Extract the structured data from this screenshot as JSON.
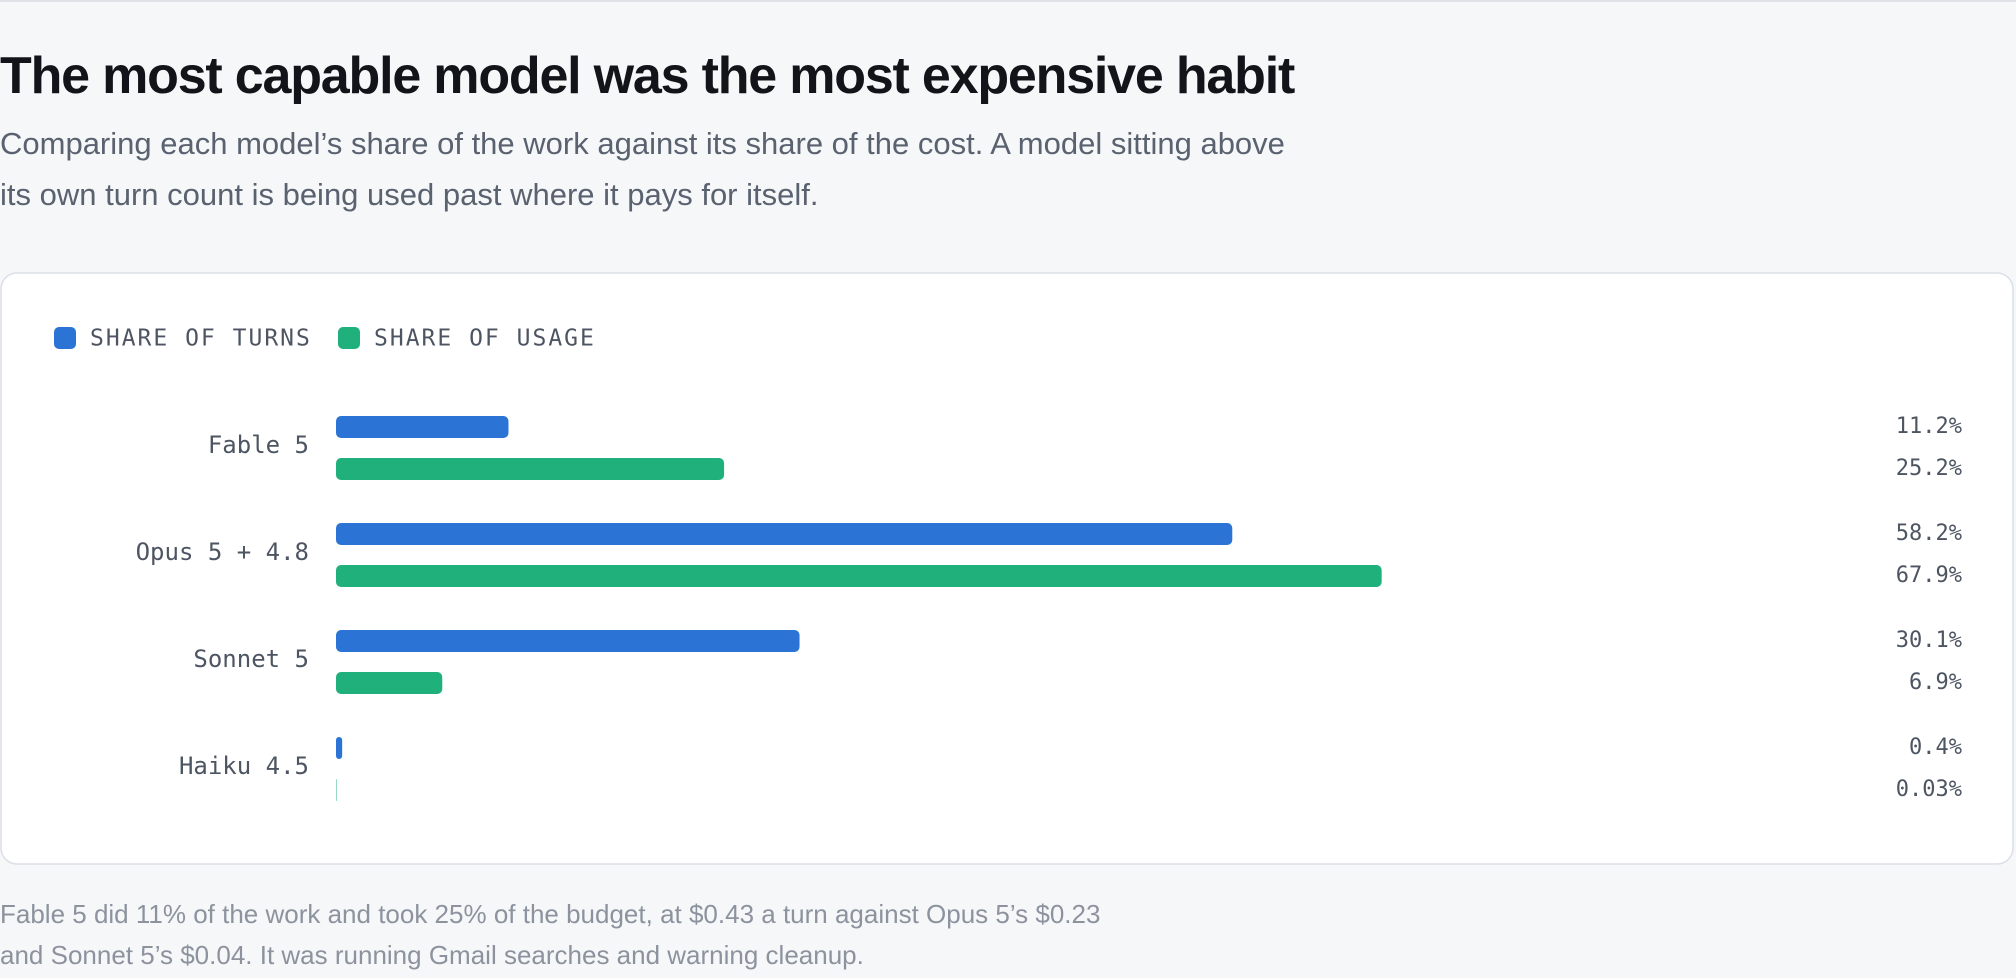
{
  "header": {
    "title": "The most capable model was the most expensive habit",
    "subtitle": "Comparing each model’s share of the work against its share of the cost. A model sitting above its own turn count is being used past where it pays for itself."
  },
  "chart_data": {
    "type": "bar",
    "orientation": "horizontal",
    "categories": [
      "Fable 5",
      "Opus 5 + 4.8",
      "Sonnet 5",
      "Haiku 4.5"
    ],
    "series": [
      {
        "name": "SHARE OF TURNS",
        "color": "#2b74d6",
        "values": [
          11.2,
          58.2,
          30.1,
          0.4
        ],
        "value_labels": [
          "11.2%",
          "58.2%",
          "30.1%",
          "0.4%"
        ]
      },
      {
        "name": "SHARE OF USAGE",
        "color": "#1fb07b",
        "values": [
          25.2,
          67.9,
          6.9,
          0.03
        ],
        "value_labels": [
          "25.2%",
          "67.9%",
          "6.9%",
          "0.03%"
        ]
      }
    ],
    "legend": "top-left"
  },
  "footer": {
    "note": "Fable 5 did 11% of the work and took 25% of the budget, at $0.43 a turn against Opus 5’s $0.23 and Sonnet 5’s $0.04. It was running Gmail searches and warning cleanup."
  }
}
